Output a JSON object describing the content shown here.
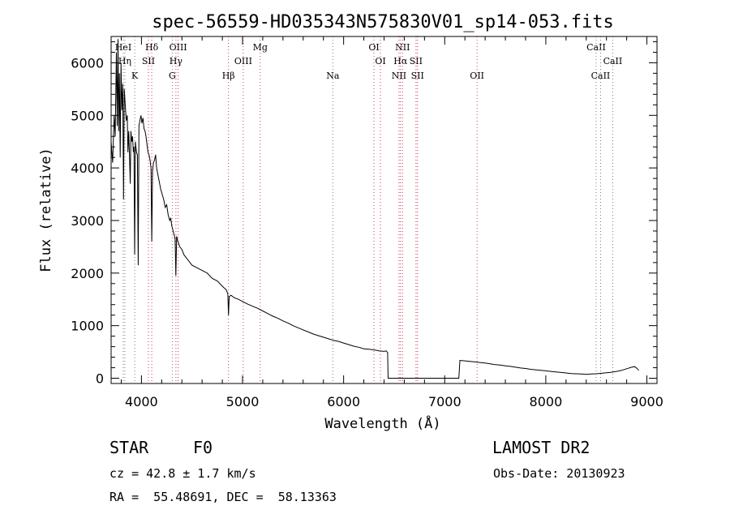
{
  "chart_data": {
    "type": "line",
    "title": "spec-56559-HD035343N575830V01_sp14-053.fits",
    "xlabel": "Wavelength (Å)",
    "ylabel": "Flux (relative)",
    "xlim": [
      3700,
      9100
    ],
    "ylim": [
      -100,
      6500
    ],
    "x_ticks": [
      4000,
      5000,
      6000,
      7000,
      8000,
      9000
    ],
    "y_ticks": [
      0,
      1000,
      2000,
      3000,
      4000,
      5000,
      6000
    ],
    "grid": false,
    "series": [
      {
        "points": [
          [
            3700,
            4500
          ],
          [
            3715,
            4100
          ],
          [
            3730,
            5000
          ],
          [
            3740,
            4600
          ],
          [
            3752,
            6200
          ],
          [
            3760,
            4800
          ],
          [
            3768,
            6450
          ],
          [
            3775,
            4700
          ],
          [
            3782,
            5800
          ],
          [
            3790,
            4200
          ],
          [
            3798,
            6000
          ],
          [
            3806,
            5100
          ],
          [
            3815,
            5600
          ],
          [
            3823,
            3400
          ],
          [
            3830,
            5500
          ],
          [
            3840,
            5200
          ],
          [
            3850,
            4900
          ],
          [
            3860,
            5000
          ],
          [
            3866,
            4300
          ],
          [
            3874,
            4700
          ],
          [
            3882,
            4200
          ],
          [
            3889,
            3700
          ],
          [
            3896,
            4700
          ],
          [
            3905,
            4500
          ],
          [
            3912,
            4600
          ],
          [
            3920,
            4300
          ],
          [
            3926,
            4400
          ],
          [
            3933,
            2350
          ],
          [
            3940,
            4500
          ],
          [
            3950,
            4300
          ],
          [
            3960,
            4250
          ],
          [
            3968,
            2150
          ],
          [
            3975,
            4800
          ],
          [
            3985,
            4900
          ],
          [
            3995,
            5000
          ],
          [
            4005,
            4850
          ],
          [
            4015,
            4950
          ],
          [
            4025,
            4750
          ],
          [
            4035,
            4700
          ],
          [
            4045,
            4600
          ],
          [
            4055,
            4450
          ],
          [
            4065,
            4300
          ],
          [
            4075,
            4250
          ],
          [
            4085,
            4150
          ],
          [
            4095,
            4000
          ],
          [
            4102,
            2600
          ],
          [
            4110,
            3950
          ],
          [
            4120,
            4100
          ],
          [
            4130,
            4150
          ],
          [
            4140,
            4250
          ],
          [
            4150,
            4000
          ],
          [
            4160,
            3900
          ],
          [
            4175,
            3750
          ],
          [
            4190,
            3600
          ],
          [
            4205,
            3500
          ],
          [
            4220,
            3400
          ],
          [
            4235,
            3250
          ],
          [
            4250,
            3300
          ],
          [
            4265,
            3100
          ],
          [
            4280,
            3000
          ],
          [
            4290,
            3050
          ],
          [
            4300,
            2900
          ],
          [
            4320,
            2750
          ],
          [
            4333,
            2650
          ],
          [
            4340,
            1950
          ],
          [
            4348,
            2700
          ],
          [
            4360,
            2600
          ],
          [
            4380,
            2500
          ],
          [
            4400,
            2450
          ],
          [
            4420,
            2350
          ],
          [
            4440,
            2300
          ],
          [
            4460,
            2250
          ],
          [
            4480,
            2200
          ],
          [
            4500,
            2150
          ],
          [
            4550,
            2100
          ],
          [
            4600,
            2050
          ],
          [
            4650,
            2000
          ],
          [
            4700,
            1900
          ],
          [
            4750,
            1850
          ],
          [
            4800,
            1750
          ],
          [
            4840,
            1680
          ],
          [
            4855,
            1600
          ],
          [
            4861,
            1200
          ],
          [
            4868,
            1550
          ],
          [
            4885,
            1580
          ],
          [
            4920,
            1530
          ],
          [
            4960,
            1500
          ],
          [
            5000,
            1460
          ],
          [
            5050,
            1410
          ],
          [
            5100,
            1370
          ],
          [
            5150,
            1330
          ],
          [
            5200,
            1280
          ],
          [
            5250,
            1230
          ],
          [
            5300,
            1180
          ],
          [
            5350,
            1140
          ],
          [
            5400,
            1090
          ],
          [
            5450,
            1050
          ],
          [
            5500,
            1000
          ],
          [
            5550,
            960
          ],
          [
            5600,
            920
          ],
          [
            5650,
            880
          ],
          [
            5700,
            840
          ],
          [
            5750,
            810
          ],
          [
            5800,
            780
          ],
          [
            5850,
            750
          ],
          [
            5900,
            720
          ],
          [
            5950,
            700
          ],
          [
            6000,
            670
          ],
          [
            6050,
            640
          ],
          [
            6100,
            610
          ],
          [
            6150,
            590
          ],
          [
            6200,
            560
          ],
          [
            6250,
            550
          ],
          [
            6300,
            540
          ],
          [
            6350,
            520
          ],
          [
            6400,
            510
          ],
          [
            6420,
            520
          ],
          [
            6435,
            490
          ],
          [
            6440,
            0
          ],
          [
            7140,
            0
          ],
          [
            7150,
            340
          ],
          [
            7200,
            330
          ],
          [
            7250,
            320
          ],
          [
            7300,
            310
          ],
          [
            7350,
            300
          ],
          [
            7400,
            290
          ],
          [
            7450,
            275
          ],
          [
            7500,
            260
          ],
          [
            7550,
            250
          ],
          [
            7600,
            235
          ],
          [
            7650,
            225
          ],
          [
            7700,
            210
          ],
          [
            7750,
            195
          ],
          [
            7800,
            185
          ],
          [
            7850,
            170
          ],
          [
            7900,
            160
          ],
          [
            7950,
            150
          ],
          [
            8000,
            140
          ],
          [
            8050,
            130
          ],
          [
            8100,
            120
          ],
          [
            8150,
            110
          ],
          [
            8200,
            100
          ],
          [
            8250,
            90
          ],
          [
            8300,
            85
          ],
          [
            8350,
            80
          ],
          [
            8400,
            75
          ],
          [
            8450,
            80
          ],
          [
            8500,
            85
          ],
          [
            8550,
            95
          ],
          [
            8600,
            105
          ],
          [
            8650,
            115
          ],
          [
            8700,
            130
          ],
          [
            8750,
            150
          ],
          [
            8800,
            180
          ],
          [
            8850,
            210
          ],
          [
            8880,
            220
          ],
          [
            8900,
            190
          ],
          [
            8920,
            150
          ]
        ]
      }
    ],
    "spectral_lines": [
      {
        "label": "HeI",
        "x": 3820,
        "row": 1
      },
      {
        "label": "Hη",
        "x": 3836,
        "row": 2
      },
      {
        "label": "K",
        "x": 3934,
        "row": 3
      },
      {
        "label": "Hδ",
        "x": 4102,
        "row": 1
      },
      {
        "label": "SII",
        "x": 4069,
        "row": 2
      },
      {
        "label": "OIII",
        "x": 4363,
        "row": 1
      },
      {
        "label": "Hγ",
        "x": 4341,
        "row": 2
      },
      {
        "label": "G",
        "x": 4305,
        "row": 3
      },
      {
        "label": "Hβ",
        "x": 4861,
        "row": 3
      },
      {
        "label": "OIII",
        "x": 5007,
        "row": 2
      },
      {
        "label": "Mg",
        "x": 5175,
        "row": 1
      },
      {
        "label": "Na",
        "x": 5893,
        "row": 3
      },
      {
        "label": "OI",
        "x": 6300,
        "row": 1
      },
      {
        "label": "OI",
        "x": 6364,
        "row": 2
      },
      {
        "label": "NII",
        "x": 6583,
        "row": 1
      },
      {
        "label": "Hα",
        "x": 6563,
        "row": 2
      },
      {
        "label": "SII",
        "x": 6716,
        "row": 2
      },
      {
        "label": "NII",
        "x": 6548,
        "row": 3
      },
      {
        "label": "SII",
        "x": 6731,
        "row": 3
      },
      {
        "label": "OII",
        "x": 7320,
        "row": 3
      },
      {
        "label": "CaII",
        "x": 8498,
        "row": 1
      },
      {
        "label": "CaII",
        "x": 8662,
        "row": 2
      },
      {
        "label": "CaII",
        "x": 8542,
        "row": 3
      }
    ],
    "line_colors": {
      "emission": "#d4364a",
      "absorption": "#7a7a7a"
    }
  },
  "info": {
    "object_class": "STAR",
    "subclass": "F0",
    "survey": "LAMOST DR2",
    "redshift": "cz = 42.8 ± 1.7 km/s",
    "obs_date": "Obs-Date: 20130923",
    "coords": "RA =  55.48691, DEC =  58.13363"
  }
}
